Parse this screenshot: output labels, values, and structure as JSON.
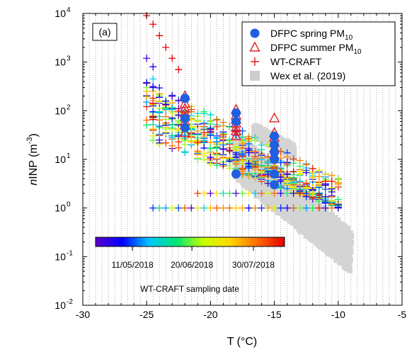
{
  "chart_data": {
    "type": "scatter",
    "panel_label": "(a)",
    "xlabel": "T (°C)",
    "ylabel": {
      "italic": "n",
      "main": "INP (m",
      "sup": "-3",
      "close": ")"
    },
    "x_range": [
      -30,
      -5
    ],
    "y_range_log10": [
      -2,
      4
    ],
    "y_scale": "log",
    "grid": "vertical dotted lines every 0.5 °C",
    "x_ticks": [
      {
        "value": -30,
        "label": "-30"
      },
      {
        "value": -25,
        "label": "-25"
      },
      {
        "value": -20,
        "label": "-20"
      },
      {
        "value": -15,
        "label": "-15"
      },
      {
        "value": -10,
        "label": "-10"
      },
      {
        "value": -5,
        "label": "-5"
      }
    ],
    "y_ticks": [
      {
        "exp": -2,
        "base": "10",
        "sup": "-2"
      },
      {
        "exp": -1,
        "base": "10",
        "sup": "-1"
      },
      {
        "exp": 0,
        "base": "10",
        "sup": "0"
      },
      {
        "exp": 1,
        "base": "10",
        "sup": "1"
      },
      {
        "exp": 2,
        "base": "10",
        "sup": "2"
      },
      {
        "exp": 3,
        "base": "10",
        "sup": "3"
      },
      {
        "exp": 4,
        "base": "10",
        "sup": "4"
      }
    ],
    "legend": {
      "position": "top-right",
      "entries": [
        {
          "marker": "filled-circle",
          "color": "#1f5fe0",
          "text": "DFPC spring PM",
          "sub": "10"
        },
        {
          "marker": "open-triangle",
          "color": "#e02020",
          "text": "DFPC summer PM",
          "sub": "10"
        },
        {
          "marker": "plus",
          "color": "#e02020",
          "text": "WT-CRAFT",
          "sub": ""
        },
        {
          "marker": "filled-square",
          "color": "#cccccc",
          "text": "Wex et al. (2019)",
          "sub": ""
        }
      ]
    },
    "colorbar": {
      "title": "WT-CRAFT sampling date",
      "ticks": [
        "11/05/2018",
        "20/06/2018",
        "30/07/2018"
      ],
      "tick_fractions": [
        0.195,
        0.51,
        0.835
      ],
      "gradient": [
        "#5a00c8",
        "#0000ff",
        "#00c8ff",
        "#00e676",
        "#c8ff00",
        "#ffd700",
        "#ff6a00",
        "#e60000"
      ]
    },
    "series": [
      {
        "name": "DFPC spring PM10",
        "color": "#1f5fe0",
        "points": [
          {
            "x": -22,
            "y": 180
          },
          {
            "x": -22,
            "y": 70
          },
          {
            "x": -22,
            "y": 45
          },
          {
            "x": -18,
            "y": 90
          },
          {
            "x": -18,
            "y": 60
          },
          {
            "x": -18,
            "y": 5
          },
          {
            "x": -15,
            "y": 30
          },
          {
            "x": -15,
            "y": 20
          },
          {
            "x": -15,
            "y": 14
          },
          {
            "x": -15,
            "y": 10
          },
          {
            "x": -15,
            "y": 5
          },
          {
            "x": -15,
            "y": 3
          }
        ]
      },
      {
        "name": "DFPC summer PM10",
        "color": "#e02020",
        "points": [
          {
            "x": -22,
            "y": 200
          },
          {
            "x": -22,
            "y": 140
          },
          {
            "x": -22,
            "y": 110
          },
          {
            "x": -22,
            "y": 90
          },
          {
            "x": -22,
            "y": 75
          },
          {
            "x": -22,
            "y": 60
          },
          {
            "x": -22,
            "y": 50
          },
          {
            "x": -22,
            "y": 35
          },
          {
            "x": -18,
            "y": 105
          },
          {
            "x": -18,
            "y": 80
          },
          {
            "x": -18,
            "y": 65
          },
          {
            "x": -18,
            "y": 55
          },
          {
            "x": -18,
            "y": 45
          },
          {
            "x": -18,
            "y": 38
          },
          {
            "x": -18,
            "y": 30
          },
          {
            "x": -15,
            "y": 70
          },
          {
            "x": -15,
            "y": 35
          },
          {
            "x": -15,
            "y": 28
          },
          {
            "x": -15,
            "y": 22
          },
          {
            "x": -15,
            "y": 17
          },
          {
            "x": -15,
            "y": 12
          }
        ]
      },
      {
        "name": "WT-CRAFT (red, late samples)",
        "color": "#e60000",
        "points": [
          {
            "x": -25,
            "y": 9000
          },
          {
            "x": -24.5,
            "y": 6000
          },
          {
            "x": -24,
            "y": 3500
          },
          {
            "x": -23.5,
            "y": 2000
          },
          {
            "x": -23,
            "y": 1200
          },
          {
            "x": -22.5,
            "y": 700
          }
        ]
      },
      {
        "name": "Wex et al. (2019)",
        "color": "#d4d4d4",
        "bands": [
          {
            "x_start": -18,
            "x_end": -9,
            "y_top_start": 40,
            "y_top_end": 0.35,
            "y_bottom_start": 4,
            "y_bottom_end": 0.05
          },
          {
            "x_start": -16.5,
            "x_end": -13.5,
            "y_top_start": 50,
            "y_top_end": 20,
            "y_bottom_start": 30,
            "y_bottom_end": 10
          }
        ]
      }
    ],
    "wtcraft_cloud": {
      "description_free": true,
      "bands": [
        {
          "x_start": -25,
          "x_end": -10,
          "y_top_start": 400,
          "y_top_end": 4,
          "y_bottom_start": 50,
          "y_bottom_end": 1
        },
        {
          "x_start": -24.5,
          "x_end": -10,
          "y_top_start": 250,
          "y_top_end": 1.2,
          "y_bottom_start": 20,
          "y_bottom_end": 1
        }
      ],
      "outliers": [
        {
          "x": -25,
          "y": 1200,
          "c": 0.05
        },
        {
          "x": -24.5,
          "y": 800,
          "c": 0.1
        },
        {
          "x": -24.5,
          "y": 450,
          "c": 0.3
        },
        {
          "x": -24.5,
          "y": 300,
          "c": 0.08
        }
      ]
    }
  }
}
